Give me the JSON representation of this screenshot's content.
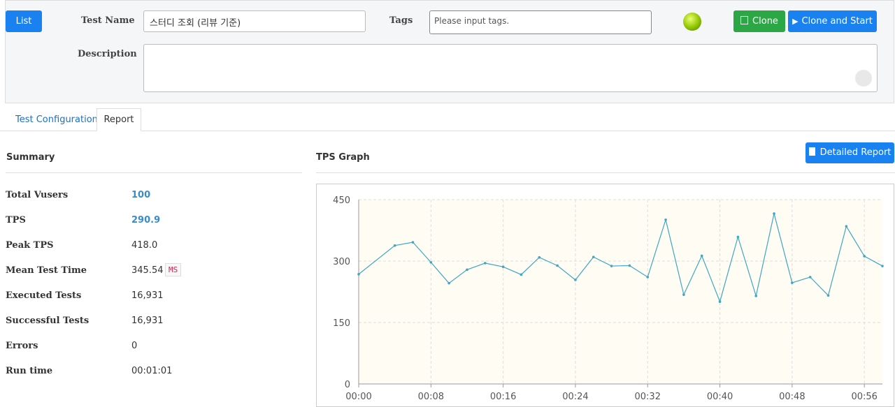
{
  "header": {
    "list_button": "List",
    "test_name_label": "Test Name",
    "test_name_value": "스터디 조회 (리뷰 기준)",
    "tags_label": "Tags",
    "tags_placeholder": "Please input tags.",
    "clone_button": "Clone",
    "clone_start_button": "Clone and Start",
    "description_label": "Description"
  },
  "tabs": [
    "Test Configuration",
    "Report"
  ],
  "summary": {
    "title": "Summary",
    "rows": [
      [
        "Total Vusers",
        "100"
      ],
      [
        "TPS",
        "290.9"
      ],
      [
        "Peak TPS",
        "418.0"
      ],
      [
        "Mean Test Time",
        "345.54"
      ],
      [
        "Executed Tests",
        "16,931"
      ],
      [
        "Successful Tests",
        "16,931"
      ],
      [
        "Errors",
        "0"
      ],
      [
        "Run time",
        "00:01:01"
      ]
    ],
    "unit": "MS"
  },
  "graph_title": "TPS Graph",
  "detailed_report_button": "Detailed Report",
  "chart_data": {
    "type": "line",
    "x": [
      0,
      4,
      6,
      8,
      10,
      12,
      14,
      16,
      18,
      20,
      22,
      24,
      26,
      28,
      30,
      32,
      34,
      36,
      38,
      40,
      42,
      44,
      46,
      48,
      50,
      52,
      54,
      56,
      58
    ],
    "series": [
      {
        "name": "TPS",
        "color": "#3fa6c6",
        "values": [
          268,
          338,
          346,
          297,
          246,
          279,
          295,
          286,
          267,
          309,
          289,
          254,
          310,
          288,
          289,
          261,
          401,
          218,
          313,
          201,
          359,
          215,
          416,
          247,
          261,
          216,
          385,
          312,
          288
        ]
      }
    ],
    "xlim": [
      0,
      58
    ],
    "xticks": [
      {
        "value": 0,
        "label": "00:00"
      },
      {
        "value": 8,
        "label": "00:08"
      },
      {
        "value": 16,
        "label": "00:16"
      },
      {
        "value": 24,
        "label": "00:24"
      },
      {
        "value": 32,
        "label": "00:32"
      },
      {
        "value": 40,
        "label": "00:40"
      },
      {
        "value": 48,
        "label": "00:48"
      },
      {
        "value": 56,
        "label": "00:56"
      }
    ],
    "ylim": [
      0,
      450
    ],
    "yticks": [
      0,
      150,
      300,
      450
    ],
    "grid": true
  }
}
